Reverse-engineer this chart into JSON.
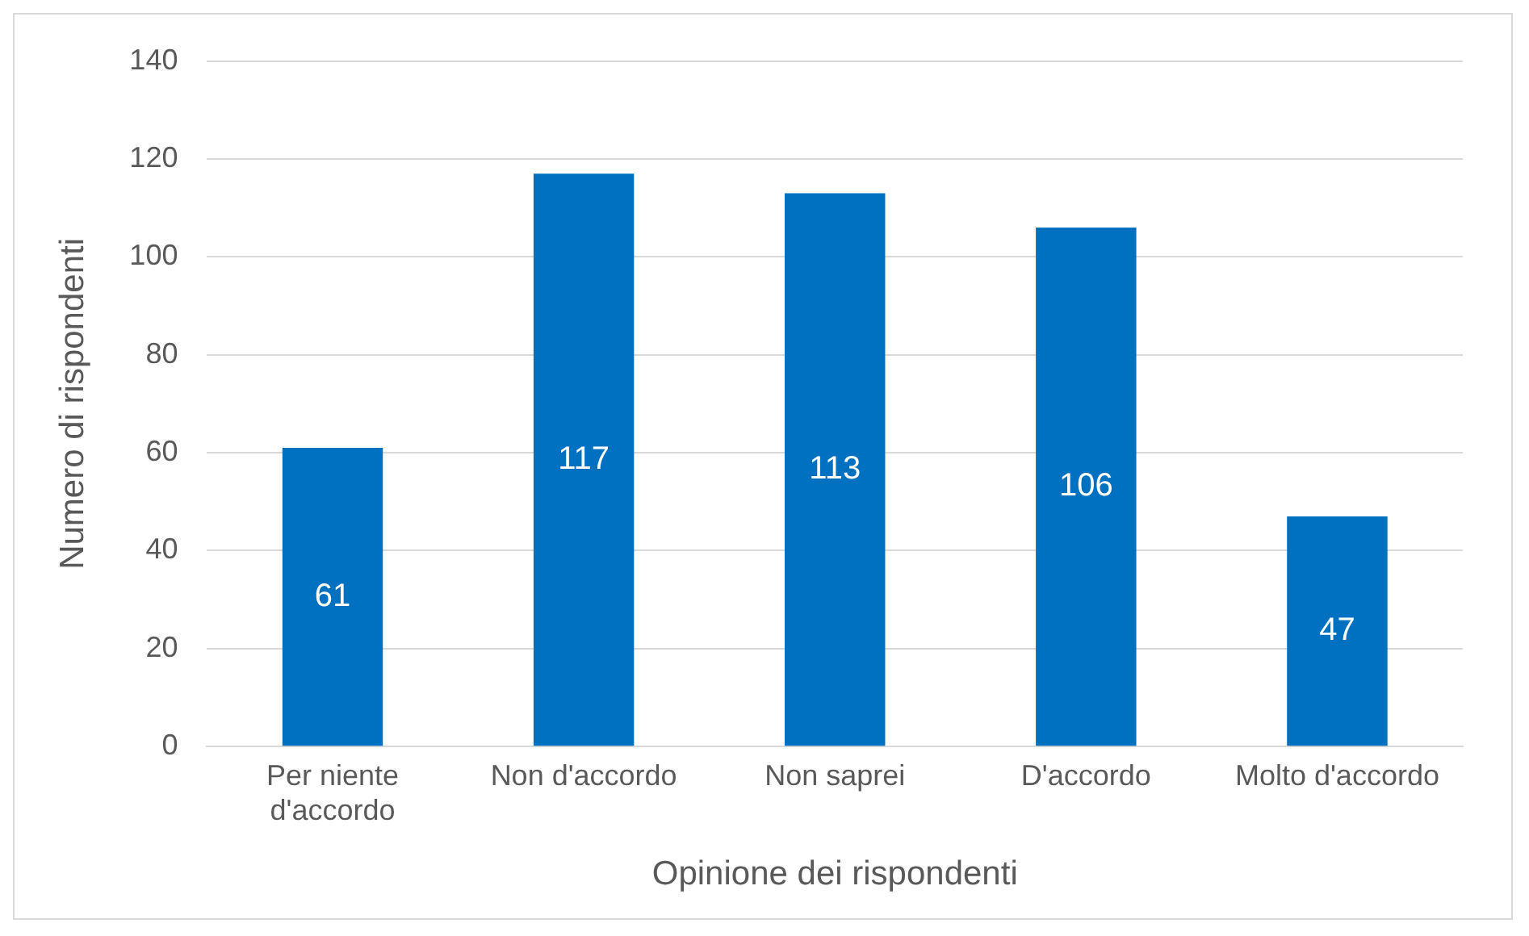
{
  "chart_data": {
    "type": "bar",
    "xlabel": "Opinione dei rispondenti",
    "ylabel": "Numero di rispondenti",
    "categories": [
      "Per niente d'accordo",
      "Non d'accordo",
      "Non saprei",
      "D'accordo",
      "Molto d'accordo"
    ],
    "values": [
      61,
      117,
      113,
      106,
      47
    ],
    "color": "#0070c0",
    "ylim": [
      0,
      140
    ],
    "yticks": [
      0,
      20,
      40,
      60,
      80,
      100,
      120,
      140
    ],
    "grid": "y",
    "legend": false,
    "data_labels": true
  }
}
